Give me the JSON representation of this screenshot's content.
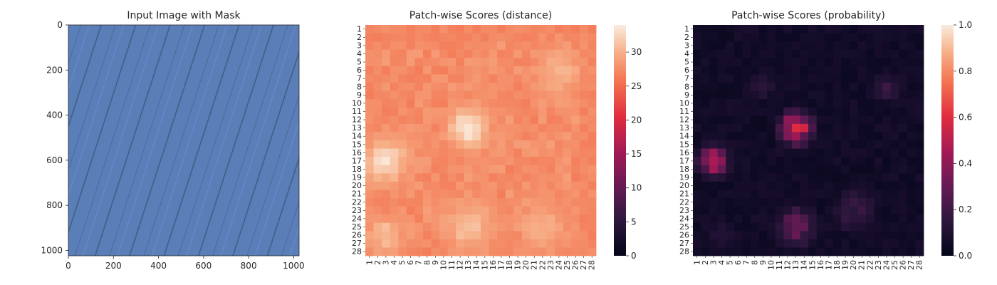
{
  "chart_data": [
    {
      "type": "image",
      "title": "Input Image with Mask",
      "xlabel": "",
      "ylabel": "",
      "xlim": [
        0,
        1024
      ],
      "ylim": [
        1024,
        0
      ],
      "x_ticks": [
        0,
        200,
        400,
        600,
        800,
        1000
      ],
      "y_ticks": [
        0,
        200,
        400,
        600,
        800,
        1000
      ],
      "image_description_colors": {
        "base": "#5a7fb8",
        "streak": "#2c3f5e"
      }
    },
    {
      "type": "heatmap",
      "title": "Patch-wise Scores (distance)",
      "xlabel": "",
      "ylabel": "",
      "grid_size": 28,
      "row_labels": [
        "1",
        "2",
        "3",
        "4",
        "5",
        "6",
        "7",
        "8",
        "9",
        "10",
        "11",
        "12",
        "13",
        "14",
        "15",
        "16",
        "17",
        "18",
        "19",
        "20",
        "21",
        "22",
        "23",
        "24",
        "25",
        "26",
        "27",
        "28"
      ],
      "col_labels": [
        "1",
        "2",
        "3",
        "4",
        "5",
        "6",
        "7",
        "8",
        "9",
        "10",
        "11",
        "12",
        "13",
        "14",
        "15",
        "16",
        "17",
        "18",
        "19",
        "20",
        "21",
        "22",
        "23",
        "24",
        "25",
        "26",
        "27",
        "28"
      ],
      "colorbar": {
        "min": 0,
        "max": 34,
        "ticks": [
          0,
          5,
          10,
          15,
          20,
          25,
          30
        ]
      },
      "border_value": 22,
      "interior_value": 27,
      "hotspots": [
        {
          "row": 13,
          "col": 13,
          "value": 34,
          "spread": 1.6
        },
        {
          "row": 17,
          "col": 3,
          "value": 33,
          "spread": 1.8
        },
        {
          "row": 26,
          "col": 3,
          "value": 31,
          "spread": 1.5
        },
        {
          "row": 25,
          "col": 13,
          "value": 31,
          "spread": 2.0
        },
        {
          "row": 6,
          "col": 24,
          "value": 30,
          "spread": 2.0
        },
        {
          "row": 25,
          "col": 22,
          "value": 30,
          "spread": 2.0
        }
      ]
    },
    {
      "type": "heatmap",
      "title": "Patch-wise Scores (probability)",
      "xlabel": "",
      "ylabel": "",
      "grid_size": 28,
      "row_labels": [
        "1",
        "2",
        "3",
        "4",
        "5",
        "6",
        "7",
        "8",
        "9",
        "10",
        "11",
        "12",
        "13",
        "14",
        "15",
        "16",
        "17",
        "18",
        "19",
        "20",
        "21",
        "22",
        "23",
        "24",
        "25",
        "26",
        "27",
        "28"
      ],
      "col_labels": [
        "1",
        "2",
        "3",
        "4",
        "5",
        "6",
        "7",
        "8",
        "9",
        "10",
        "11",
        "12",
        "13",
        "14",
        "15",
        "16",
        "17",
        "18",
        "19",
        "20",
        "21",
        "22",
        "23",
        "24",
        "25",
        "26",
        "27",
        "28"
      ],
      "colorbar": {
        "min": 0.0,
        "max": 1.0,
        "ticks": [
          "0.0",
          "0.2",
          "0.4",
          "0.6",
          "0.8",
          "1.0"
        ]
      },
      "background_value": 0.03,
      "hotspots": [
        {
          "row": 13,
          "col": 13,
          "value": 0.62,
          "spread": 1.3
        },
        {
          "row": 17,
          "col": 3,
          "value": 0.55,
          "spread": 1.2
        },
        {
          "row": 25,
          "col": 13,
          "value": 0.28,
          "spread": 1.8
        },
        {
          "row": 23,
          "col": 20,
          "value": 0.18,
          "spread": 2.0
        },
        {
          "row": 8,
          "col": 24,
          "value": 0.16,
          "spread": 1.5
        },
        {
          "row": 8,
          "col": 9,
          "value": 0.13,
          "spread": 1.3
        },
        {
          "row": 26,
          "col": 4,
          "value": 0.14,
          "spread": 1.2
        }
      ]
    }
  ]
}
